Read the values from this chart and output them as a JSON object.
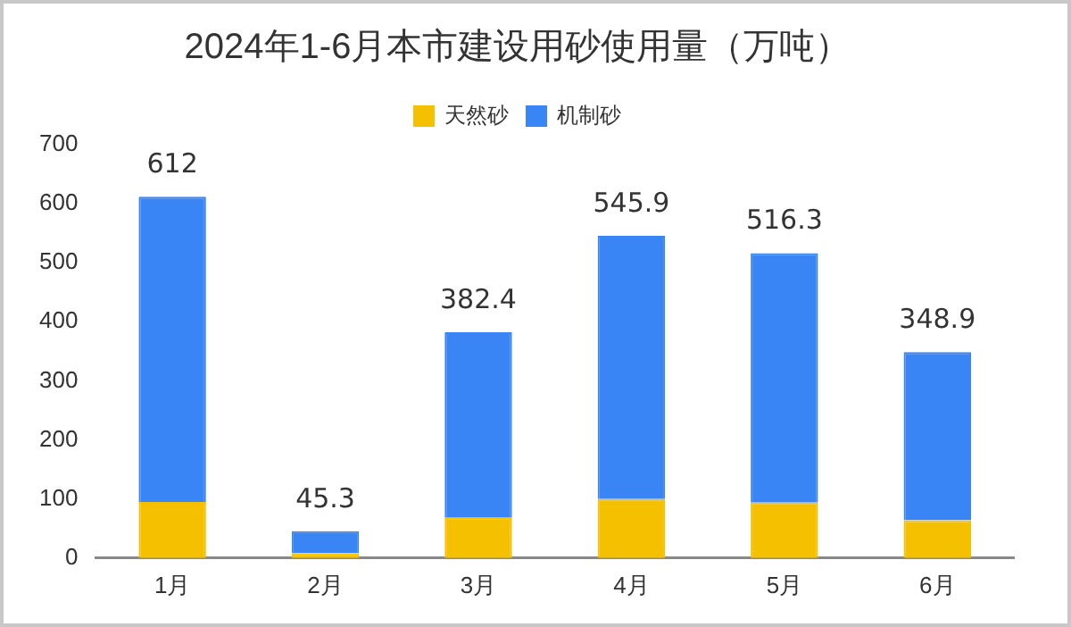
{
  "chart_data": {
    "type": "bar",
    "title": "2024年1-6月本市建设用砂使用量（万吨）",
    "categories": [
      "1月",
      "2月",
      "3月",
      "4月",
      "5月",
      "6月"
    ],
    "stacked": true,
    "series": [
      {
        "name": "天然砂",
        "color": "#f5c000",
        "values": [
          95,
          8,
          68,
          100,
          94,
          64
        ]
      },
      {
        "name": "机制砂",
        "color": "#3a85f5",
        "values": [
          517,
          37.3,
          314.4,
          445.9,
          422.3,
          284.9
        ]
      }
    ],
    "totals": [
      "612",
      "45.3",
      "382.4",
      "545.9",
      "516.3",
      "348.9"
    ],
    "ylim": [
      0,
      700
    ],
    "yticks": [
      0,
      100,
      200,
      300,
      400,
      500,
      600,
      700
    ],
    "grid": false,
    "legend": "top"
  }
}
